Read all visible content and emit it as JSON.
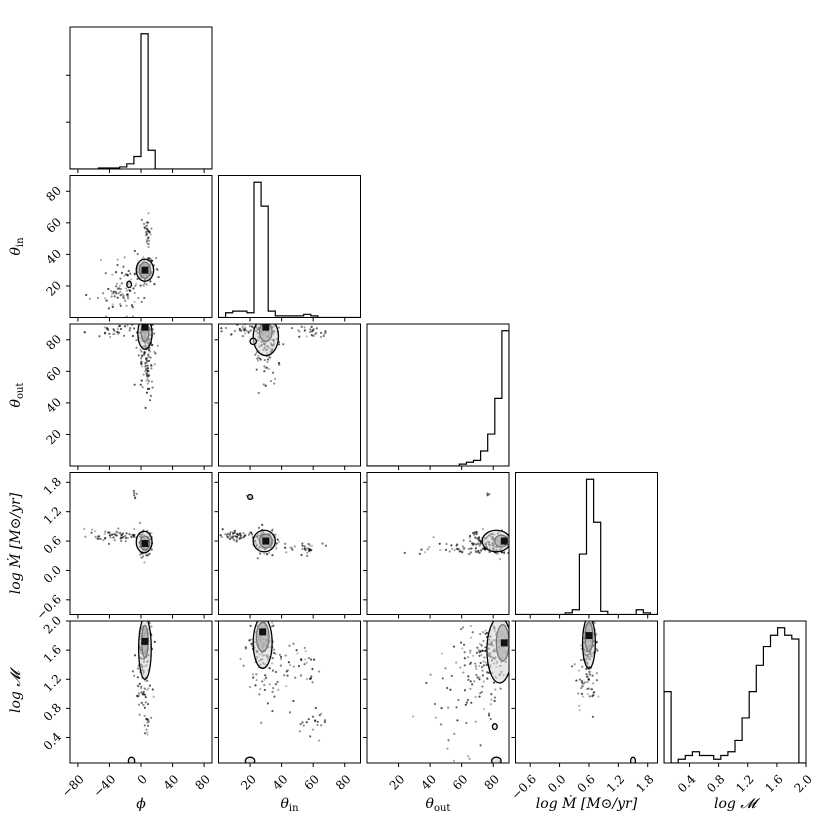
{
  "chart_data": {
    "type": "corner",
    "title": "",
    "parameters": [
      {
        "key": "phi",
        "symbol": "ϕ",
        "sub": "",
        "range": [
          -90,
          90
        ],
        "ticks": [
          -80,
          -40,
          0,
          40,
          80
        ],
        "tick_labels": [
          "−80",
          "−40",
          "0",
          "40",
          "80"
        ]
      },
      {
        "key": "theta_in",
        "symbol": "θ",
        "sub": "in",
        "range": [
          0,
          90
        ],
        "ticks": [
          20,
          40,
          60,
          80
        ],
        "tick_labels": [
          "20",
          "40",
          "60",
          "80"
        ]
      },
      {
        "key": "theta_out",
        "symbol": "θ",
        "sub": "out",
        "range": [
          0,
          90
        ],
        "ticks": [
          20,
          40,
          60,
          80
        ],
        "tick_labels": [
          "20",
          "40",
          "60",
          "80"
        ]
      },
      {
        "key": "log_mdot",
        "symbol": "log Ṁ [M⊙/yr]",
        "sub": "",
        "range": [
          -0.9,
          2.0
        ],
        "ticks": [
          -0.6,
          0.0,
          0.6,
          1.2,
          1.8
        ],
        "tick_labels": [
          "−0.6",
          "0.0",
          "0.6",
          "1.2",
          "1.8"
        ]
      },
      {
        "key": "log_M",
        "symbol": "log 𝓜",
        "sub": "",
        "range": [
          0.05,
          2.0
        ],
        "ticks": [
          0.4,
          0.8,
          1.2,
          1.6,
          2.0
        ],
        "tick_labels": [
          "0.4",
          "0.8",
          "1.2",
          "1.6",
          "2.0"
        ]
      }
    ],
    "x_axis_labels": [
      "ϕ",
      "θin",
      "θout",
      "log Ṁ [M⊙/yr]",
      "log 𝓜"
    ],
    "y_axis_labels": [
      "",
      "θin",
      "θout",
      "log Ṁ [M⊙/yr]",
      "log 𝓜"
    ],
    "histograms": [
      {
        "param": "phi",
        "edges": [
          -90,
          -81,
          -72,
          -63,
          -54,
          -45,
          -36,
          -27,
          -18,
          -9,
          0,
          9,
          18,
          27,
          36,
          45,
          54,
          63,
          72,
          81,
          90
        ],
        "counts": [
          0,
          0,
          0,
          0,
          1,
          1,
          1,
          2,
          5,
          12,
          130,
          18,
          0,
          0,
          0,
          0,
          0,
          0,
          0,
          0
        ]
      },
      {
        "param": "theta_in",
        "edges": [
          0,
          4.5,
          9,
          13.5,
          18,
          22.5,
          27,
          31.5,
          36,
          40.5,
          45,
          49.5,
          54,
          58.5,
          63,
          67.5,
          72,
          76.5,
          81,
          85.5,
          90
        ],
        "counts": [
          0,
          3,
          4,
          4,
          3,
          85,
          70,
          4,
          1,
          1,
          1,
          1,
          2,
          1,
          0,
          0,
          0,
          0,
          0,
          0
        ]
      },
      {
        "param": "theta_out",
        "edges": [
          0,
          4.5,
          9,
          13.5,
          18,
          22.5,
          27,
          31.5,
          36,
          40.5,
          45,
          49.5,
          54,
          58.5,
          63,
          67.5,
          72,
          76.5,
          81,
          85.5,
          90
        ],
        "counts": [
          0,
          0,
          0,
          0,
          0,
          0,
          0,
          0,
          0,
          0,
          0,
          0,
          0,
          1,
          2,
          3,
          8,
          17,
          36,
          72
        ]
      },
      {
        "param": "log_mdot",
        "edges": [
          -0.9,
          -0.755,
          -0.61,
          -0.465,
          -0.32,
          -0.175,
          -0.03,
          0.115,
          0.26,
          0.405,
          0.55,
          0.695,
          0.84,
          0.985,
          1.13,
          1.275,
          1.42,
          1.565,
          1.71,
          1.855,
          2.0
        ],
        "counts": [
          0,
          0,
          0,
          0,
          0,
          0,
          0,
          1,
          3,
          38,
          85,
          58,
          2,
          0,
          0,
          0,
          0,
          3,
          1,
          0
        ]
      },
      {
        "param": "log_M",
        "edges": [
          0.05,
          0.1475,
          0.245,
          0.3425,
          0.44,
          0.5375,
          0.635,
          0.7325,
          0.83,
          0.9275,
          1.025,
          1.1225,
          1.22,
          1.3175,
          1.415,
          1.5125,
          1.61,
          1.7075,
          1.805,
          1.9025,
          2.0
        ],
        "counts": [
          19,
          0,
          1,
          2,
          3,
          2,
          2,
          1,
          2,
          3,
          6,
          12,
          19,
          26,
          31,
          34,
          36,
          34,
          33,
          0
        ]
      }
    ],
    "joint": [
      {
        "x": "phi",
        "y": "theta_in",
        "peaks": [
          [
            5,
            30
          ]
        ],
        "clouds": [
          {
            "c": [
              5,
              30
            ],
            "s": [
              6,
              4
            ],
            "n": 120
          },
          {
            "c": [
              8,
              55
            ],
            "s": [
              2,
              6
            ],
            "n": 30
          },
          {
            "c": [
              -20,
              20
            ],
            "s": [
              12,
              8
            ],
            "n": 60
          },
          {
            "c": [
              -40,
              12
            ],
            "s": [
              15,
              5
            ],
            "n": 25
          }
        ],
        "contours": [
          {
            "c": [
              5,
              30
            ],
            "r": [
              7,
              5
            ]
          },
          {
            "c": [
              5,
              30
            ],
            "r": [
              11,
              7
            ]
          },
          {
            "c": [
              -15,
              21
            ],
            "r": [
              3,
              2
            ]
          }
        ]
      },
      {
        "x": "phi",
        "y": "theta_out",
        "peaks": [
          [
            5,
            88
          ]
        ],
        "clouds": [
          {
            "c": [
              5,
              80
            ],
            "s": [
              5,
              10
            ],
            "n": 140
          },
          {
            "c": [
              -30,
              86
            ],
            "s": [
              20,
              2
            ],
            "n": 40
          },
          {
            "c": [
              8,
              60
            ],
            "s": [
              4,
              10
            ],
            "n": 40
          }
        ],
        "contours": [
          {
            "c": [
              5,
              85
            ],
            "r": [
              5,
              6
            ]
          },
          {
            "c": [
              5,
              84
            ],
            "r": [
              9,
              10
            ]
          }
        ]
      },
      {
        "x": "theta_in",
        "y": "theta_out",
        "peaks": [
          [
            30,
            88
          ]
        ],
        "clouds": [
          {
            "c": [
              30,
              80
            ],
            "s": [
              4,
              10
            ],
            "n": 140
          },
          {
            "c": [
              20,
              86
            ],
            "s": [
              10,
              2
            ],
            "n": 50
          },
          {
            "c": [
              60,
              85
            ],
            "s": [
              6,
              2
            ],
            "n": 25
          }
        ],
        "contours": [
          {
            "c": [
              30,
              85
            ],
            "r": [
              4,
              6
            ]
          },
          {
            "c": [
              30,
              82
            ],
            "r": [
              8,
              12
            ]
          },
          {
            "c": [
              22,
              79
            ],
            "r": [
              2,
              2
            ]
          }
        ]
      },
      {
        "x": "phi",
        "y": "log_mdot",
        "peaks": [
          [
            5,
            0.55
          ]
        ],
        "clouds": [
          {
            "c": [
              5,
              0.55
            ],
            "s": [
              4,
              0.12
            ],
            "n": 110
          },
          {
            "c": [
              -30,
              0.7
            ],
            "s": [
              20,
              0.06
            ],
            "n": 70
          },
          {
            "c": [
              -8,
              1.55
            ],
            "s": [
              1,
              0.05
            ],
            "n": 6
          }
        ],
        "contours": [
          {
            "c": [
              5,
              0.56
            ],
            "r": [
              6,
              0.14
            ]
          },
          {
            "c": [
              4,
              0.58
            ],
            "r": [
              10,
              0.22
            ]
          }
        ]
      },
      {
        "x": "theta_in",
        "y": "log_mdot",
        "peaks": [
          [
            30,
            0.6
          ]
        ],
        "clouds": [
          {
            "c": [
              30,
              0.6
            ],
            "s": [
              4,
              0.12
            ],
            "n": 110
          },
          {
            "c": [
              12,
              0.72
            ],
            "s": [
              8,
              0.05
            ],
            "n": 60
          },
          {
            "c": [
              55,
              0.45
            ],
            "s": [
              6,
              0.06
            ],
            "n": 30
          },
          {
            "c": [
              20,
              1.5
            ],
            "s": [
              1,
              0.04
            ],
            "n": 5
          }
        ],
        "contours": [
          {
            "c": [
              30,
              0.6
            ],
            "r": [
              4,
              0.14
            ]
          },
          {
            "c": [
              29,
              0.6
            ],
            "r": [
              7,
              0.22
            ]
          },
          {
            "c": [
              20,
              1.5
            ],
            "r": [
              1.5,
              0.05
            ]
          }
        ]
      },
      {
        "x": "theta_out",
        "y": "log_mdot",
        "peaks": [
          [
            87,
            0.6
          ]
        ],
        "clouds": [
          {
            "c": [
              80,
              0.55
            ],
            "s": [
              8,
              0.12
            ],
            "n": 140
          },
          {
            "c": [
              60,
              0.45
            ],
            "s": [
              12,
              0.08
            ],
            "n": 50
          },
          {
            "c": [
              78,
              1.55
            ],
            "s": [
              1,
              0.05
            ],
            "n": 4
          }
        ],
        "contours": [
          {
            "c": [
              85,
              0.6
            ],
            "r": [
              4,
              0.12
            ]
          },
          {
            "c": [
              82,
              0.6
            ],
            "r": [
              9,
              0.22
            ]
          }
        ]
      },
      {
        "x": "phi",
        "y": "log_M",
        "peaks": [
          [
            5,
            1.72
          ]
        ],
        "clouds": [
          {
            "c": [
              5,
              1.7
            ],
            "s": [
              4,
              0.2
            ],
            "n": 120
          },
          {
            "c": [
              3,
              1.1
            ],
            "s": [
              5,
              0.2
            ],
            "n": 50
          },
          {
            "c": [
              8,
              0.55
            ],
            "s": [
              2,
              0.1
            ],
            "n": 15
          }
        ],
        "contours": [
          {
            "c": [
              5,
              1.72
            ],
            "r": [
              4,
              0.22
            ]
          },
          {
            "c": [
              5,
              1.62
            ],
            "r": [
              8,
              0.42
            ]
          },
          {
            "c": [
              -12,
              0.08
            ],
            "r": [
              4,
              0.05
            ]
          }
        ]
      },
      {
        "x": "theta_in",
        "y": "log_M",
        "peaks": [
          [
            28,
            1.85
          ]
        ],
        "clouds": [
          {
            "c": [
              28,
              1.7
            ],
            "s": [
              4,
              0.2
            ],
            "n": 120
          },
          {
            "c": [
              35,
              1.3
            ],
            "s": [
              10,
              0.25
            ],
            "n": 60
          },
          {
            "c": [
              60,
              0.6
            ],
            "s": [
              4,
              0.12
            ],
            "n": 20
          },
          {
            "c": [
              58,
              1.35
            ],
            "s": [
              3,
              0.15
            ],
            "n": 15
          }
        ],
        "contours": [
          {
            "c": [
              28,
              1.78
            ],
            "r": [
              4,
              0.2
            ]
          },
          {
            "c": [
              28,
              1.7
            ],
            "r": [
              6,
              0.35
            ]
          },
          {
            "c": [
              20,
              0.08
            ],
            "r": [
              3,
              0.05
            ]
          }
        ]
      },
      {
        "x": "theta_out",
        "y": "log_M",
        "peaks": [
          [
            87,
            1.7
          ]
        ],
        "clouds": [
          {
            "c": [
              80,
              1.6
            ],
            "s": [
              8,
              0.25
            ],
            "n": 150
          },
          {
            "c": [
              70,
              1.2
            ],
            "s": [
              12,
              0.3
            ],
            "n": 60
          },
          {
            "c": [
              60,
              0.7
            ],
            "s": [
              10,
              0.3
            ],
            "n": 25
          }
        ],
        "contours": [
          {
            "c": [
              86,
              1.7
            ],
            "r": [
              4,
              0.25
            ]
          },
          {
            "c": [
              84,
              1.6
            ],
            "r": [
              8,
              0.45
            ]
          },
          {
            "c": [
              82,
              0.08
            ],
            "r": [
              3,
              0.05
            ]
          },
          {
            "c": [
              81,
              0.55
            ],
            "r": [
              1.5,
              0.04
            ]
          }
        ]
      },
      {
        "x": "log_mdot",
        "y": "log_M",
        "peaks": [
          [
            0.6,
            1.8
          ]
        ],
        "clouds": [
          {
            "c": [
              0.6,
              1.7
            ],
            "s": [
              0.08,
              0.18
            ],
            "n": 120
          },
          {
            "c": [
              0.55,
              1.2
            ],
            "s": [
              0.1,
              0.2
            ],
            "n": 50
          }
        ],
        "contours": [
          {
            "c": [
              0.6,
              1.78
            ],
            "r": [
              0.08,
              0.2
            ]
          },
          {
            "c": [
              0.6,
              1.7
            ],
            "r": [
              0.13,
              0.35
            ]
          },
          {
            "c": [
              1.5,
              0.08
            ],
            "r": [
              0.05,
              0.05
            ]
          }
        ]
      }
    ],
    "grid": false,
    "legend": "none"
  }
}
